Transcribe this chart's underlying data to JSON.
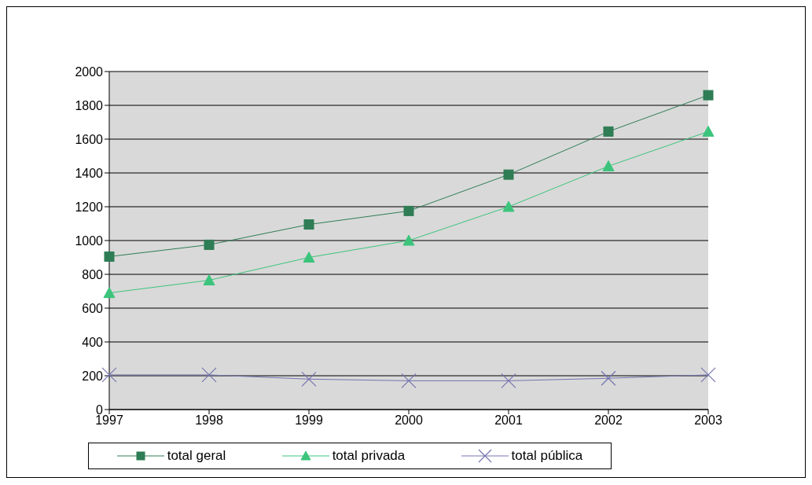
{
  "chart_data": {
    "type": "line",
    "categories": [
      "1997",
      "1998",
      "1999",
      "2000",
      "2001",
      "2002",
      "2003"
    ],
    "series": [
      {
        "name": "total geral",
        "color": "#2e7d55",
        "marker": "square",
        "values": [
          905,
          975,
          1095,
          1175,
          1390,
          1645,
          1860
        ]
      },
      {
        "name": "total privada",
        "color": "#3cc47c",
        "marker": "triangle",
        "values": [
          690,
          765,
          900,
          1000,
          1200,
          1440,
          1645
        ]
      },
      {
        "name": "total pública",
        "color": "#7474b0",
        "marker": "cross",
        "values": [
          205,
          205,
          180,
          170,
          170,
          185,
          205
        ]
      }
    ],
    "ylim": [
      0,
      2000
    ],
    "yticks": [
      0,
      200,
      400,
      600,
      800,
      1000,
      1200,
      1400,
      1600,
      1800,
      2000
    ],
    "grid": "y",
    "legend": "bottom"
  }
}
